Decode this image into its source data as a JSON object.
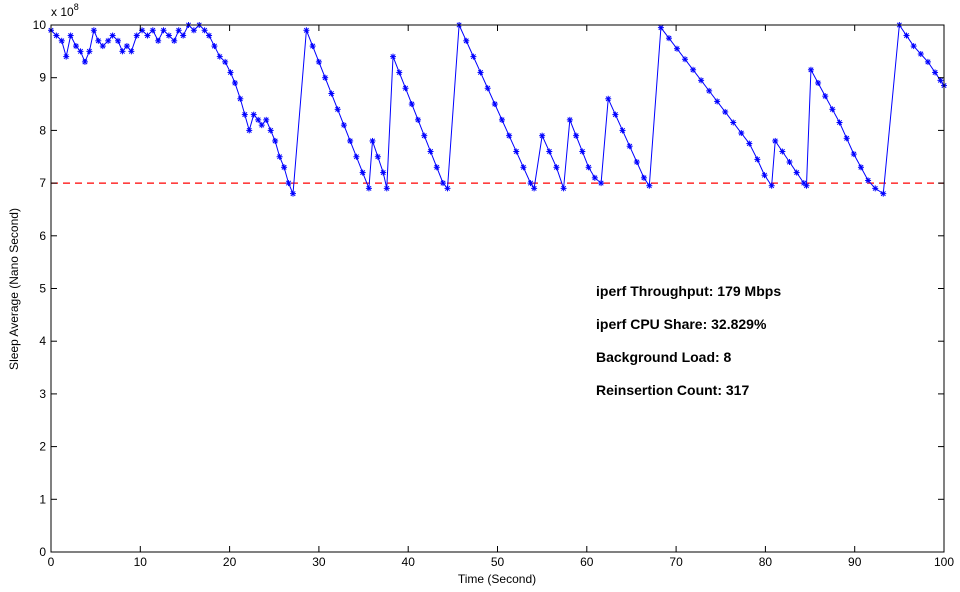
{
  "chart_data": {
    "type": "line",
    "xlabel": "Time (Second)",
    "ylabel": "Sleep  Average (Nano Second)",
    "exponent_label": "x 10",
    "exponent_power": "8",
    "xlim": [
      0,
      100
    ],
    "ylim": [
      0,
      10
    ],
    "y_scale_factor": 100000000,
    "x_ticks": [
      "0",
      "10",
      "20",
      "30",
      "40",
      "50",
      "60",
      "70",
      "80",
      "90",
      "100"
    ],
    "y_ticks": [
      "0",
      "1",
      "2",
      "3",
      "4",
      "5",
      "6",
      "7",
      "8",
      "9",
      "10"
    ],
    "grid": false,
    "threshold": {
      "y": 7,
      "color": "#ff0000",
      "style": "dashed"
    },
    "annotations": [
      "iperf Throughput: 179 Mbps",
      "iperf CPU Share: 32.829%",
      "Background Load: 8",
      "Reinsertion Count: 317"
    ],
    "series": [
      {
        "color": "#0000ff",
        "marker": "*",
        "points": [
          [
            0,
            9.9
          ],
          [
            0.6,
            9.8
          ],
          [
            1.2,
            9.7
          ],
          [
            1.7,
            9.4
          ],
          [
            2.2,
            9.8
          ],
          [
            2.8,
            9.6
          ],
          [
            3.3,
            9.5
          ],
          [
            3.8,
            9.3
          ],
          [
            4.3,
            9.5
          ],
          [
            4.8,
            9.9
          ],
          [
            5.3,
            9.7
          ],
          [
            5.8,
            9.6
          ],
          [
            6.4,
            9.7
          ],
          [
            6.9,
            9.8
          ],
          [
            7.5,
            9.7
          ],
          [
            8.0,
            9.5
          ],
          [
            8.5,
            9.6
          ],
          [
            9.0,
            9.5
          ],
          [
            9.6,
            9.8
          ],
          [
            10.2,
            9.9
          ],
          [
            10.8,
            9.8
          ],
          [
            11.4,
            9.9
          ],
          [
            12.0,
            9.7
          ],
          [
            12.6,
            9.9
          ],
          [
            13.2,
            9.8
          ],
          [
            13.8,
            9.7
          ],
          [
            14.3,
            9.9
          ],
          [
            14.8,
            9.8
          ],
          [
            15.4,
            10.0
          ],
          [
            16.0,
            9.9
          ],
          [
            16.6,
            10.0
          ],
          [
            17.2,
            9.9
          ],
          [
            17.7,
            9.8
          ],
          [
            18.3,
            9.6
          ],
          [
            18.9,
            9.4
          ],
          [
            19.5,
            9.3
          ],
          [
            20.1,
            9.1
          ],
          [
            20.6,
            8.9
          ],
          [
            21.2,
            8.6
          ],
          [
            21.7,
            8.3
          ],
          [
            22.2,
            8.0
          ],
          [
            22.7,
            8.3
          ],
          [
            23.2,
            8.2
          ],
          [
            23.6,
            8.1
          ],
          [
            24.1,
            8.2
          ],
          [
            24.6,
            8.0
          ],
          [
            25.1,
            7.8
          ],
          [
            25.6,
            7.5
          ],
          [
            26.1,
            7.3
          ],
          [
            26.6,
            7.0
          ],
          [
            27.1,
            6.8
          ],
          [
            28.6,
            9.9
          ],
          [
            29.3,
            9.6
          ],
          [
            30.0,
            9.3
          ],
          [
            30.7,
            9.0
          ],
          [
            31.4,
            8.7
          ],
          [
            32.1,
            8.4
          ],
          [
            32.8,
            8.1
          ],
          [
            33.5,
            7.8
          ],
          [
            34.2,
            7.5
          ],
          [
            34.9,
            7.2
          ],
          [
            35.6,
            6.9
          ],
          [
            36.0,
            7.8
          ],
          [
            36.6,
            7.5
          ],
          [
            37.2,
            7.2
          ],
          [
            37.6,
            6.9
          ],
          [
            38.3,
            9.4
          ],
          [
            39.0,
            9.1
          ],
          [
            39.7,
            8.8
          ],
          [
            40.4,
            8.5
          ],
          [
            41.1,
            8.2
          ],
          [
            41.8,
            7.9
          ],
          [
            42.5,
            7.6
          ],
          [
            43.2,
            7.3
          ],
          [
            43.9,
            7.0
          ],
          [
            44.4,
            6.9
          ],
          [
            45.7,
            10.0
          ],
          [
            46.5,
            9.7
          ],
          [
            47.3,
            9.4
          ],
          [
            48.1,
            9.1
          ],
          [
            48.9,
            8.8
          ],
          [
            49.7,
            8.5
          ],
          [
            50.5,
            8.2
          ],
          [
            51.3,
            7.9
          ],
          [
            52.1,
            7.6
          ],
          [
            52.9,
            7.3
          ],
          [
            53.7,
            7.0
          ],
          [
            54.1,
            6.9
          ],
          [
            55.0,
            7.9
          ],
          [
            55.8,
            7.6
          ],
          [
            56.6,
            7.3
          ],
          [
            57.4,
            6.9
          ],
          [
            58.1,
            8.2
          ],
          [
            58.8,
            7.9
          ],
          [
            59.5,
            7.6
          ],
          [
            60.2,
            7.3
          ],
          [
            60.9,
            7.1
          ],
          [
            61.6,
            7.0
          ],
          [
            62.4,
            8.6
          ],
          [
            63.2,
            8.3
          ],
          [
            64.0,
            8.0
          ],
          [
            64.8,
            7.7
          ],
          [
            65.6,
            7.4
          ],
          [
            66.4,
            7.1
          ],
          [
            67.0,
            6.95
          ],
          [
            68.3,
            9.95
          ],
          [
            69.2,
            9.75
          ],
          [
            70.1,
            9.55
          ],
          [
            71.0,
            9.35
          ],
          [
            71.9,
            9.15
          ],
          [
            72.8,
            8.95
          ],
          [
            73.7,
            8.75
          ],
          [
            74.6,
            8.55
          ],
          [
            75.5,
            8.35
          ],
          [
            76.4,
            8.15
          ],
          [
            77.3,
            7.95
          ],
          [
            78.2,
            7.75
          ],
          [
            79.1,
            7.45
          ],
          [
            79.9,
            7.15
          ],
          [
            80.7,
            6.95
          ],
          [
            81.1,
            7.8
          ],
          [
            81.9,
            7.6
          ],
          [
            82.7,
            7.4
          ],
          [
            83.5,
            7.2
          ],
          [
            84.3,
            7.0
          ],
          [
            84.6,
            6.95
          ],
          [
            85.1,
            9.15
          ],
          [
            85.9,
            8.9
          ],
          [
            86.7,
            8.65
          ],
          [
            87.5,
            8.4
          ],
          [
            88.3,
            8.15
          ],
          [
            89.1,
            7.85
          ],
          [
            89.9,
            7.55
          ],
          [
            90.7,
            7.3
          ],
          [
            91.5,
            7.05
          ],
          [
            92.3,
            6.9
          ],
          [
            93.2,
            6.8
          ],
          [
            95.0,
            10.0
          ],
          [
            95.8,
            9.8
          ],
          [
            96.6,
            9.6
          ],
          [
            97.4,
            9.45
          ],
          [
            98.2,
            9.3
          ],
          [
            99.0,
            9.1
          ],
          [
            99.6,
            8.95
          ],
          [
            100.0,
            8.85
          ]
        ]
      }
    ]
  }
}
